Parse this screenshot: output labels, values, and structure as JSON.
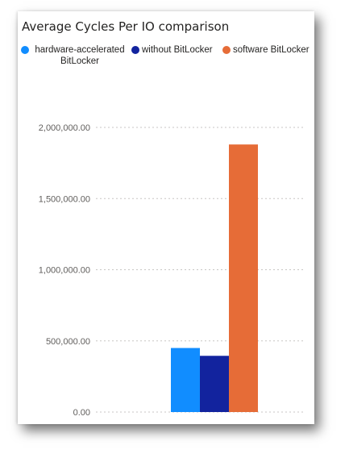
{
  "chart_data": {
    "type": "bar",
    "title": "Average Cycles Per IO comparison",
    "series": [
      {
        "name": "hardware-accelerated\nBitLocker",
        "color": "#118dff",
        "values": [
          450000
        ]
      },
      {
        "name": "without BitLocker",
        "color": "#12239e",
        "values": [
          395000
        ]
      },
      {
        "name": "software BitLocker",
        "color": "#e66c37",
        "values": [
          1880000
        ]
      }
    ],
    "ylim": [
      0,
      2000000
    ],
    "yticks": [
      {
        "value": 0,
        "label": "0.00"
      },
      {
        "value": 500000,
        "label": "500,000.00"
      },
      {
        "value": 1000000,
        "label": "1,000,000.00"
      },
      {
        "value": 1500000,
        "label": "1,500,000.00"
      },
      {
        "value": 2000000,
        "label": "2,000,000.00"
      }
    ],
    "grid": true,
    "legend_position": "top-left"
  }
}
